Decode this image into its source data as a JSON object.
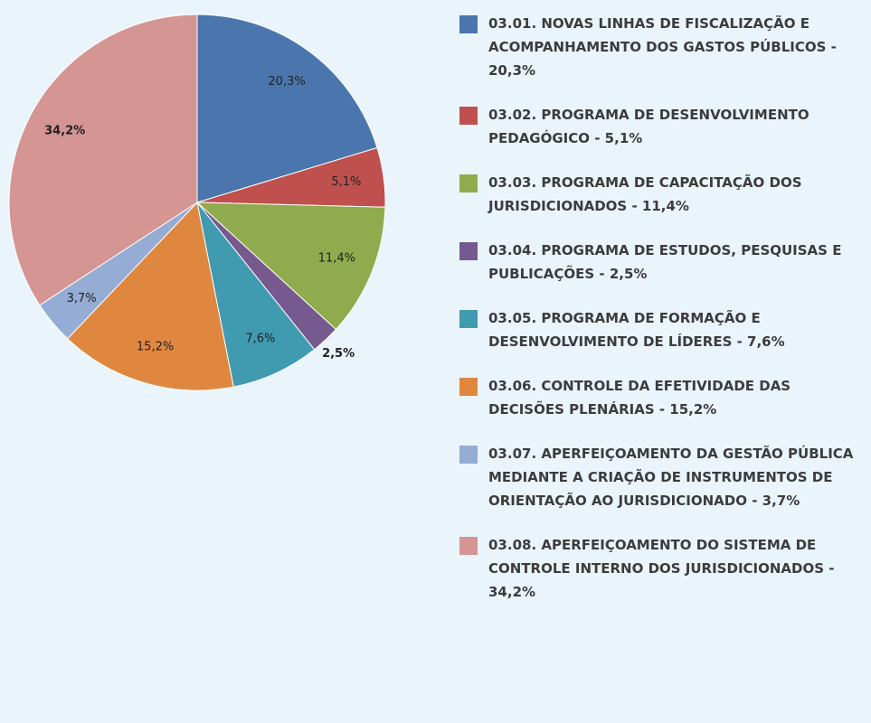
{
  "chart_data": {
    "type": "pie",
    "categories": [
      "03.01. NOVAS LINHAS DE FISCALIZAÇÃO E ACOMPANHAMENTO DOS GASTOS PÚBLICOS - 20,3%",
      "03.02. PROGRAMA DE DESENVOLVIMENTO PEDAGÓGICO - 5,1%",
      "03.03. PROGRAMA DE CAPACITAÇÃO DOS JURISDICIONADOS - 11,4%",
      "03.04. PROGRAMA DE ESTUDOS, PESQUISAS E PUBLICAÇÕES - 2,5%",
      "03.05. PROGRAMA DE FORMAÇÃO E DESENVOLVIMENTO DE LÍDERES - 7,6%",
      "03.06. CONTROLE DA EFETIVIDADE DAS DECISÕES PLENÁRIAS - 15,2%",
      "03.07. APERFEIÇOAMENTO DA GESTÃO PÚBLICA MEDIANTE A CRIAÇÃO DE INSTRUMENTOS DE ORIENTAÇÃO AO JURISDICIONADO - 3,7%",
      "03.08. APERFEIÇOAMENTO DO SISTEMA DE CONTROLE INTERNO DOS JURISDICIONADOS - 34,2%"
    ],
    "values": [
      20.3,
      5.1,
      11.4,
      2.5,
      7.6,
      15.2,
      3.7,
      34.2
    ],
    "value_labels": [
      "20,3%",
      "5,1%",
      "11,4%",
      "2,5%",
      "7,6%",
      "15,2%",
      "3,7%",
      "34,2%"
    ],
    "colors": [
      "#4a76ad",
      "#c0504d",
      "#8fab4e",
      "#76598f",
      "#409ab0",
      "#e0873f",
      "#95acd4",
      "#d49593"
    ],
    "legend": "right"
  }
}
